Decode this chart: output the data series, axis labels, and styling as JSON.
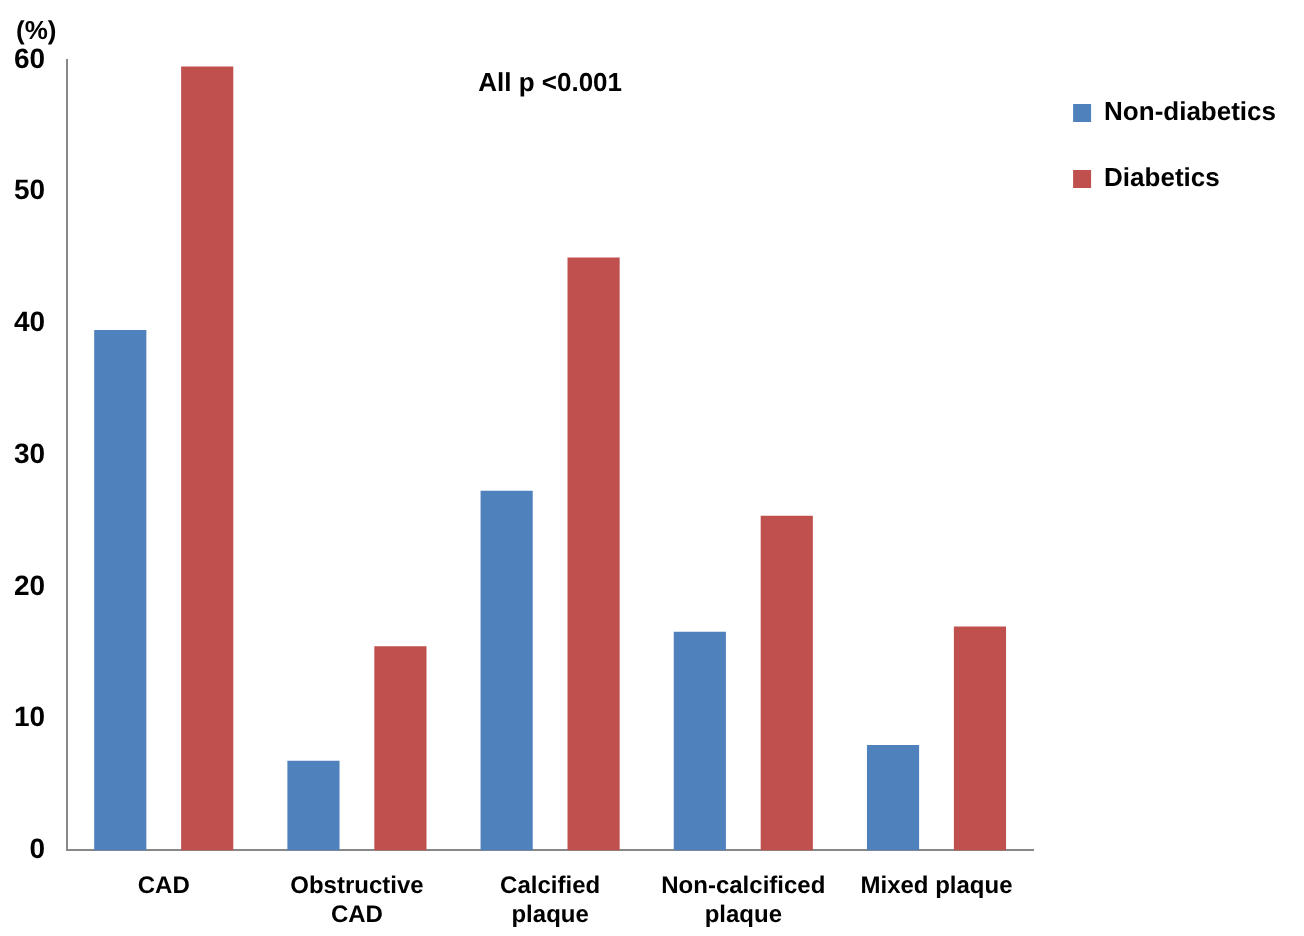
{
  "chart_data": {
    "type": "bar",
    "ylabel": "(%)",
    "annotations": [
      {
        "text": "All p <0.001"
      }
    ],
    "categories": [
      "CAD",
      "Obstructive CAD",
      "Calcified plaque",
      "Non-calcificed plaque",
      "Mixed plaque"
    ],
    "series": [
      {
        "name": "Non-diabetics",
        "color": "#4f81bd",
        "values": [
          39.5,
          6.8,
          27.3,
          16.6,
          8
        ]
      },
      {
        "name": "Diabetics",
        "color": "#c0504d",
        "values": [
          59.5,
          15.5,
          45,
          25.4,
          17
        ]
      }
    ],
    "ylim": [
      0,
      60
    ],
    "yticks": [
      0,
      10,
      20,
      30,
      40,
      50,
      60
    ],
    "grid": false,
    "legend": "top right"
  }
}
